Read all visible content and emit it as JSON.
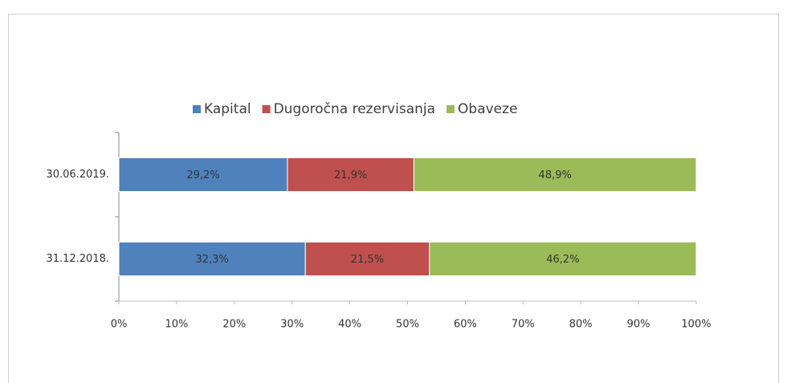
{
  "chart_data": {
    "type": "bar",
    "orientation": "horizontal",
    "stacked": true,
    "categories": [
      "30.06.2019.",
      "31.12.2018."
    ],
    "series": [
      {
        "name": "Kapital",
        "color": "#4f81bd",
        "values": [
          29.2,
          32.3
        ],
        "value_labels": [
          "29,2%",
          "32,3%"
        ]
      },
      {
        "name": "Dugoročna rezervisanja",
        "color": "#c0504d",
        "values": [
          21.9,
          21.5
        ],
        "value_labels": [
          "21,9%",
          "21,5%"
        ]
      },
      {
        "name": "Obaveze",
        "color": "#9bbb59",
        "values": [
          48.9,
          46.2
        ],
        "value_labels": [
          "48,9%",
          "46,2%"
        ]
      }
    ],
    "xlim": [
      0,
      100
    ],
    "xticks": [
      {
        "value": 0,
        "label": "0%"
      },
      {
        "value": 10,
        "label": "10%"
      },
      {
        "value": 20,
        "label": "20%"
      },
      {
        "value": 30,
        "label": "30%"
      },
      {
        "value": 40,
        "label": "40%"
      },
      {
        "value": 50,
        "label": "50%"
      },
      {
        "value": 60,
        "label": "60%"
      },
      {
        "value": 70,
        "label": "70%"
      },
      {
        "value": 80,
        "label": "80%"
      },
      {
        "value": 90,
        "label": "90%"
      },
      {
        "value": 100,
        "label": "100%"
      }
    ],
    "legend": "top"
  }
}
